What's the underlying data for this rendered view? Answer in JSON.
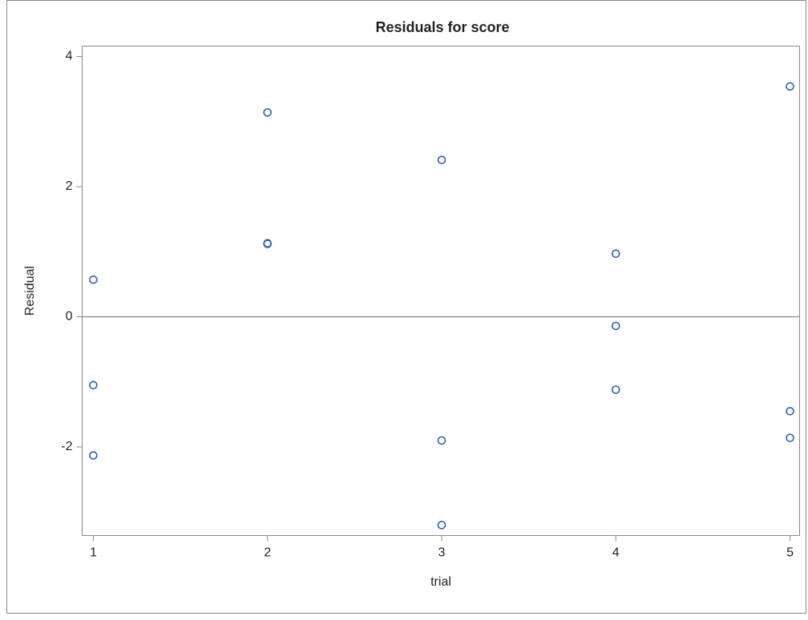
{
  "chart_data": {
    "type": "scatter",
    "title": "Residuals for score",
    "x_label": "trial",
    "y_label": "Residual",
    "series": [
      {
        "name": "Residual",
        "color": "#2f5fb0",
        "x": [
          1,
          1,
          1,
          2,
          2,
          2,
          3,
          3,
          3,
          4,
          4,
          4,
          5,
          5,
          5
        ],
        "values": [
          0.57,
          -1.05,
          -2.13,
          3.14,
          1.13,
          1.12,
          2.41,
          -1.9,
          -3.2,
          0.97,
          -0.14,
          -1.12,
          3.54,
          -1.45,
          -1.86
        ]
      }
    ],
    "xlim": [
      0.936,
      5.055
    ],
    "ylim": [
      -3.36,
      4.16
    ],
    "xticks": [
      1,
      2,
      3,
      4,
      5
    ],
    "yticks": [
      -2,
      0,
      2,
      4
    ],
    "reference_line": 0
  }
}
